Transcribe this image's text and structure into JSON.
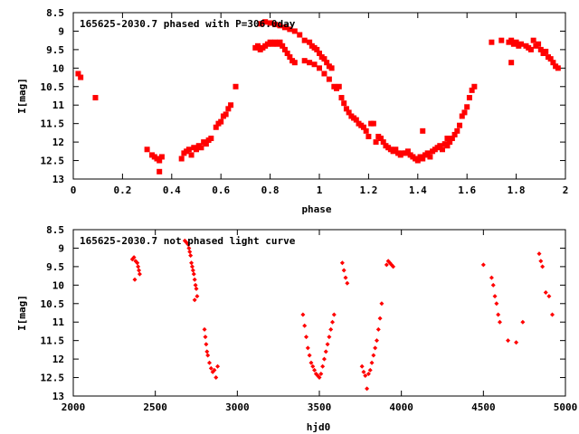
{
  "chart_data": [
    {
      "type": "scatter",
      "title": "165625-2030.7 phased with P=306.0day",
      "xlabel": "phase",
      "ylabel": "I[mag]",
      "xlim": [
        0,
        2
      ],
      "ylim": [
        13,
        8.5
      ],
      "y_inverted": true,
      "xticks": [
        "0",
        "0.2",
        "0.4",
        "0.6",
        "0.8",
        "1",
        "1.2",
        "1.4",
        "1.6",
        "1.8",
        "2"
      ],
      "yticks": [
        "8.5",
        "9",
        "9.5",
        "10",
        "10.5",
        "11",
        "11.5",
        "12",
        "12.5",
        "13"
      ],
      "marker_color": "#ff0000",
      "marker": "filled-square",
      "series": [
        {
          "points": [
            [
              0.02,
              10.15
            ],
            [
              0.03,
              10.25
            ],
            [
              0.09,
              10.8
            ],
            [
              0.3,
              12.2
            ],
            [
              0.32,
              12.35
            ],
            [
              0.33,
              12.4
            ],
            [
              0.34,
              12.45
            ],
            [
              0.35,
              12.5
            ],
            [
              0.36,
              12.4
            ],
            [
              0.35,
              12.8
            ],
            [
              0.44,
              12.45
            ],
            [
              0.45,
              12.3
            ],
            [
              0.46,
              12.25
            ],
            [
              0.47,
              12.2
            ],
            [
              0.48,
              12.35
            ],
            [
              0.49,
              12.15
            ],
            [
              0.5,
              12.2
            ],
            [
              0.51,
              12.1
            ],
            [
              0.52,
              12.15
            ],
            [
              0.53,
              12.0
            ],
            [
              0.54,
              12.05
            ],
            [
              0.55,
              11.95
            ],
            [
              0.56,
              11.9
            ],
            [
              0.58,
              11.6
            ],
            [
              0.59,
              11.5
            ],
            [
              0.6,
              11.45
            ],
            [
              0.61,
              11.3
            ],
            [
              0.62,
              11.25
            ],
            [
              0.63,
              11.1
            ],
            [
              0.64,
              11.0
            ],
            [
              0.66,
              10.5
            ],
            [
              0.74,
              9.45
            ],
            [
              0.75,
              9.4
            ],
            [
              0.76,
              9.5
            ],
            [
              0.77,
              9.45
            ],
            [
              0.78,
              9.4
            ],
            [
              0.79,
              9.35
            ],
            [
              0.8,
              9.3
            ],
            [
              0.81,
              9.35
            ],
            [
              0.82,
              9.3
            ],
            [
              0.83,
              9.35
            ],
            [
              0.84,
              9.3
            ],
            [
              0.85,
              9.4
            ],
            [
              0.86,
              9.5
            ],
            [
              0.87,
              9.6
            ],
            [
              0.88,
              9.7
            ],
            [
              0.89,
              9.8
            ],
            [
              0.9,
              9.85
            ],
            [
              0.76,
              8.8
            ],
            [
              0.78,
              8.75
            ],
            [
              0.8,
              8.78
            ],
            [
              0.82,
              8.82
            ],
            [
              0.84,
              8.85
            ],
            [
              0.86,
              8.9
            ],
            [
              0.88,
              8.95
            ],
            [
              0.9,
              9.0
            ],
            [
              0.92,
              9.1
            ],
            [
              0.94,
              9.25
            ],
            [
              0.96,
              9.3
            ],
            [
              0.97,
              9.4
            ],
            [
              0.98,
              9.45
            ],
            [
              0.99,
              9.5
            ],
            [
              1.0,
              9.6
            ],
            [
              1.01,
              9.7
            ],
            [
              1.02,
              9.75
            ],
            [
              1.03,
              9.85
            ],
            [
              1.04,
              9.95
            ],
            [
              1.05,
              10.0
            ],
            [
              0.94,
              9.8
            ],
            [
              0.96,
              9.85
            ],
            [
              0.98,
              9.9
            ],
            [
              1.0,
              10.0
            ],
            [
              1.02,
              10.15
            ],
            [
              1.04,
              10.3
            ],
            [
              1.06,
              10.5
            ],
            [
              1.07,
              10.55
            ],
            [
              1.08,
              10.5
            ],
            [
              1.09,
              10.8
            ],
            [
              1.1,
              10.95
            ],
            [
              1.11,
              11.1
            ],
            [
              1.12,
              11.2
            ],
            [
              1.13,
              11.3
            ],
            [
              1.14,
              11.35
            ],
            [
              1.15,
              11.4
            ],
            [
              1.16,
              11.5
            ],
            [
              1.17,
              11.55
            ],
            [
              1.18,
              11.6
            ],
            [
              1.19,
              11.7
            ],
            [
              1.2,
              11.85
            ],
            [
              1.21,
              11.5
            ],
            [
              1.22,
              11.5
            ],
            [
              1.23,
              12.0
            ],
            [
              1.24,
              11.85
            ],
            [
              1.25,
              11.9
            ],
            [
              1.26,
              12.0
            ],
            [
              1.27,
              12.1
            ],
            [
              1.28,
              12.15
            ],
            [
              1.29,
              12.2
            ],
            [
              1.3,
              12.25
            ],
            [
              1.31,
              12.2
            ],
            [
              1.32,
              12.3
            ],
            [
              1.33,
              12.35
            ],
            [
              1.34,
              12.3
            ],
            [
              1.35,
              12.3
            ],
            [
              1.36,
              12.25
            ],
            [
              1.37,
              12.35
            ],
            [
              1.38,
              12.4
            ],
            [
              1.39,
              12.45
            ],
            [
              1.4,
              12.5
            ],
            [
              1.41,
              12.4
            ],
            [
              1.42,
              12.45
            ],
            [
              1.43,
              12.35
            ],
            [
              1.44,
              12.3
            ],
            [
              1.45,
              12.4
            ],
            [
              1.46,
              12.25
            ],
            [
              1.47,
              12.2
            ],
            [
              1.48,
              12.15
            ],
            [
              1.49,
              12.1
            ],
            [
              1.5,
              12.2
            ],
            [
              1.51,
              12.05
            ],
            [
              1.52,
              12.1
            ],
            [
              1.53,
              12.0
            ],
            [
              1.54,
              11.9
            ],
            [
              1.55,
              11.8
            ],
            [
              1.56,
              11.7
            ],
            [
              1.57,
              11.55
            ],
            [
              1.58,
              11.3
            ],
            [
              1.59,
              11.2
            ],
            [
              1.6,
              11.05
            ],
            [
              1.61,
              10.8
            ],
            [
              1.62,
              10.6
            ],
            [
              1.63,
              10.5
            ],
            [
              1.42,
              11.7
            ],
            [
              1.52,
              11.9
            ],
            [
              1.7,
              9.3
            ],
            [
              1.74,
              9.25
            ],
            [
              1.77,
              9.3
            ],
            [
              1.78,
              9.25
            ],
            [
              1.79,
              9.35
            ],
            [
              1.8,
              9.3
            ],
            [
              1.81,
              9.4
            ],
            [
              1.82,
              9.35
            ],
            [
              1.78,
              9.85
            ],
            [
              1.84,
              9.4
            ],
            [
              1.85,
              9.45
            ],
            [
              1.86,
              9.5
            ],
            [
              1.87,
              9.25
            ],
            [
              1.88,
              9.4
            ],
            [
              1.89,
              9.35
            ],
            [
              1.9,
              9.5
            ],
            [
              1.91,
              9.6
            ],
            [
              1.92,
              9.55
            ],
            [
              1.93,
              9.7
            ],
            [
              1.94,
              9.75
            ],
            [
              1.95,
              9.85
            ],
            [
              1.96,
              9.95
            ],
            [
              1.97,
              10.0
            ]
          ]
        }
      ]
    },
    {
      "type": "scatter",
      "title": "165625-2030.7 not phased light curve",
      "xlabel": "hjd0",
      "ylabel": "I[mag]",
      "xlim": [
        2000,
        5000
      ],
      "ylim": [
        13,
        8.5
      ],
      "y_inverted": true,
      "xticks": [
        "2000",
        "2500",
        "3000",
        "3500",
        "4000",
        "4500",
        "5000"
      ],
      "yticks": [
        "8.5",
        "9",
        "9.5",
        "10",
        "10.5",
        "11",
        "11.5",
        "12",
        "12.5",
        "13"
      ],
      "marker_color": "#ff0000",
      "marker": "filled-diamond",
      "series": [
        {
          "points": [
            [
              2360,
              9.3
            ],
            [
              2370,
              9.25
            ],
            [
              2380,
              9.35
            ],
            [
              2390,
              9.4
            ],
            [
              2395,
              9.5
            ],
            [
              2400,
              9.6
            ],
            [
              2405,
              9.7
            ],
            [
              2375,
              9.85
            ],
            [
              2680,
              8.8
            ],
            [
              2690,
              8.85
            ],
            [
              2700,
              8.9
            ],
            [
              2705,
              9.0
            ],
            [
              2710,
              9.1
            ],
            [
              2715,
              9.2
            ],
            [
              2720,
              9.4
            ],
            [
              2725,
              9.5
            ],
            [
              2730,
              9.6
            ],
            [
              2735,
              9.7
            ],
            [
              2740,
              9.85
            ],
            [
              2745,
              10.0
            ],
            [
              2750,
              10.1
            ],
            [
              2755,
              10.3
            ],
            [
              2740,
              10.4
            ],
            [
              2800,
              11.2
            ],
            [
              2805,
              11.4
            ],
            [
              2810,
              11.6
            ],
            [
              2815,
              11.8
            ],
            [
              2820,
              11.9
            ],
            [
              2830,
              12.1
            ],
            [
              2840,
              12.25
            ],
            [
              2850,
              12.35
            ],
            [
              2860,
              12.3
            ],
            [
              2870,
              12.5
            ],
            [
              2880,
              12.2
            ],
            [
              3400,
              10.8
            ],
            [
              3410,
              11.1
            ],
            [
              3420,
              11.4
            ],
            [
              3430,
              11.7
            ],
            [
              3440,
              11.9
            ],
            [
              3450,
              12.1
            ],
            [
              3460,
              12.2
            ],
            [
              3470,
              12.3
            ],
            [
              3480,
              12.4
            ],
            [
              3490,
              12.45
            ],
            [
              3500,
              12.5
            ],
            [
              3510,
              12.4
            ],
            [
              3520,
              12.2
            ],
            [
              3530,
              12.0
            ],
            [
              3540,
              11.8
            ],
            [
              3550,
              11.6
            ],
            [
              3560,
              11.4
            ],
            [
              3570,
              11.2
            ],
            [
              3580,
              11.0
            ],
            [
              3590,
              10.8
            ],
            [
              3640,
              9.4
            ],
            [
              3650,
              9.6
            ],
            [
              3660,
              9.8
            ],
            [
              3670,
              9.95
            ],
            [
              3760,
              12.2
            ],
            [
              3770,
              12.35
            ],
            [
              3780,
              12.45
            ],
            [
              3790,
              12.8
            ],
            [
              3800,
              12.4
            ],
            [
              3810,
              12.3
            ],
            [
              3820,
              12.1
            ],
            [
              3830,
              11.9
            ],
            [
              3840,
              11.7
            ],
            [
              3850,
              11.5
            ],
            [
              3860,
              11.2
            ],
            [
              3870,
              10.9
            ],
            [
              3880,
              10.5
            ],
            [
              3910,
              9.45
            ],
            [
              3920,
              9.35
            ],
            [
              3930,
              9.4
            ],
            [
              3940,
              9.45
            ],
            [
              3950,
              9.5
            ],
            [
              4500,
              9.45
            ],
            [
              4550,
              9.8
            ],
            [
              4560,
              10.0
            ],
            [
              4570,
              10.3
            ],
            [
              4580,
              10.5
            ],
            [
              4590,
              10.8
            ],
            [
              4600,
              11.0
            ],
            [
              4650,
              11.5
            ],
            [
              4700,
              11.55
            ],
            [
              4740,
              11.0
            ],
            [
              4840,
              9.15
            ],
            [
              4850,
              9.35
            ],
            [
              4860,
              9.5
            ],
            [
              4880,
              10.2
            ],
            [
              4900,
              10.3
            ],
            [
              4920,
              10.8
            ]
          ]
        }
      ]
    }
  ]
}
